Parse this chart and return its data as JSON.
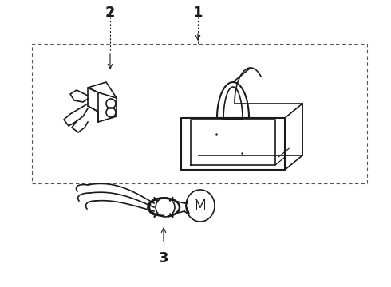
{
  "background_color": "#ffffff",
  "line_color": "#1a1a1a",
  "label_1": "1",
  "label_2": "2",
  "label_3": "3"
}
